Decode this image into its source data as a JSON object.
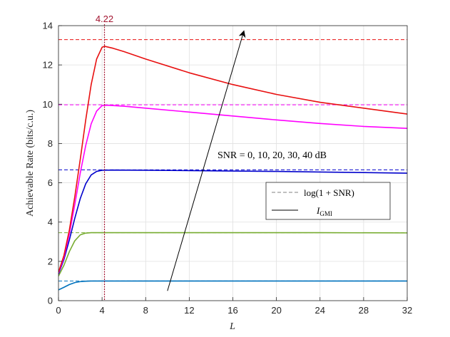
{
  "chart_data": {
    "type": "line",
    "xlabel": "L",
    "ylabel": "Achievable Rate (bits/c.u.)",
    "xlim": [
      0,
      32
    ],
    "ylim": [
      0,
      14
    ],
    "xticks": [
      0,
      4,
      8,
      12,
      16,
      20,
      24,
      28,
      32
    ],
    "yticks": [
      0,
      2,
      4,
      6,
      8,
      10,
      12,
      14
    ],
    "grid": true,
    "annotation": {
      "text_main": "SNR = 0, 10, 20, 30, 40 dB",
      "arrow_from": [
        10,
        0.5
      ],
      "arrow_to": [
        17,
        13.7
      ]
    },
    "vline": {
      "x": 4.22,
      "label": "4.22",
      "color": "#a2142f"
    },
    "legend": {
      "position": "center-right",
      "entries": [
        {
          "label_main": "log(1 + SNR)",
          "style": "dashed",
          "color": "#808080"
        },
        {
          "label_main": "I",
          "label_sub": "GMI",
          "style": "solid",
          "color": "#000000"
        }
      ]
    },
    "series": [
      {
        "snr_db": 0,
        "color": "#0072bd",
        "capacity": 1.0,
        "x": [
          0,
          0.5,
          1,
          1.5,
          2,
          2.5,
          3,
          4,
          6,
          10,
          16,
          24,
          32
        ],
        "y": [
          0.55,
          0.68,
          0.82,
          0.92,
          0.97,
          0.99,
          1.0,
          1.0,
          1.0,
          1.0,
          1.0,
          1.0,
          1.0
        ]
      },
      {
        "snr_db": 10,
        "color": "#77ac30",
        "capacity": 3.46,
        "x": [
          0,
          0.5,
          1,
          1.5,
          2,
          2.5,
          3,
          4,
          6,
          10,
          16,
          24,
          32
        ],
        "y": [
          1.25,
          1.8,
          2.5,
          3.05,
          3.35,
          3.44,
          3.46,
          3.46,
          3.46,
          3.46,
          3.46,
          3.46,
          3.45
        ]
      },
      {
        "snr_db": 20,
        "color": "#0000cc",
        "capacity": 6.66,
        "x": [
          0,
          0.5,
          1,
          1.5,
          2,
          2.5,
          3,
          3.5,
          4,
          5,
          8,
          12,
          16,
          20,
          24,
          28,
          32
        ],
        "y": [
          1.35,
          2.1,
          3.1,
          4.2,
          5.2,
          5.95,
          6.4,
          6.58,
          6.64,
          6.65,
          6.64,
          6.62,
          6.6,
          6.58,
          6.55,
          6.52,
          6.49
        ]
      },
      {
        "snr_db": 30,
        "color": "#ff00ff",
        "capacity": 9.97,
        "x": [
          0,
          0.5,
          1,
          1.5,
          2,
          2.5,
          3,
          3.5,
          4,
          4.5,
          6,
          8,
          12,
          16,
          20,
          24,
          28,
          32
        ],
        "y": [
          1.4,
          2.2,
          3.4,
          4.9,
          6.5,
          7.9,
          9.0,
          9.65,
          9.93,
          9.95,
          9.9,
          9.8,
          9.6,
          9.4,
          9.2,
          9.02,
          8.87,
          8.77
        ]
      },
      {
        "snr_db": 40,
        "color": "#e81010",
        "capacity": 13.29,
        "x": [
          0,
          0.5,
          1,
          1.5,
          2,
          2.5,
          3,
          3.5,
          4,
          4.22,
          5,
          6,
          8,
          12,
          16,
          20,
          24,
          28,
          32
        ],
        "y": [
          1.45,
          2.3,
          3.6,
          5.3,
          7.2,
          9.2,
          11.0,
          12.3,
          12.9,
          12.95,
          12.85,
          12.68,
          12.3,
          11.6,
          11.0,
          10.5,
          10.1,
          9.8,
          9.5
        ]
      }
    ]
  }
}
